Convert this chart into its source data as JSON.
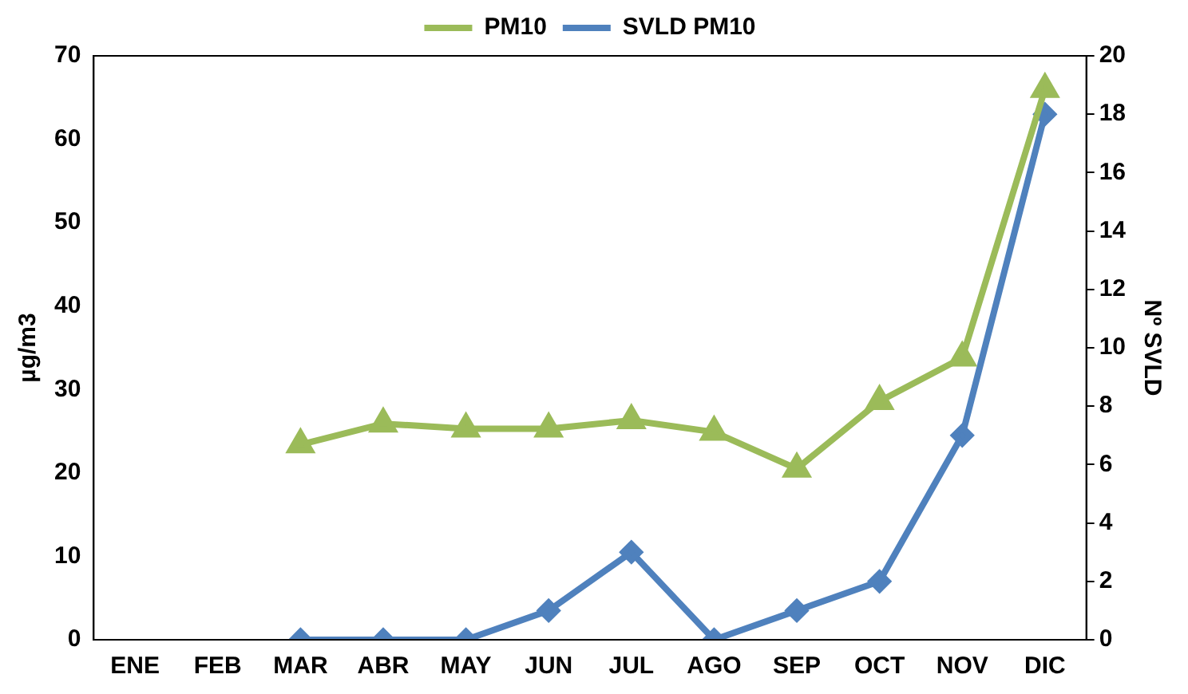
{
  "chart_data": {
    "type": "line",
    "ylabel": "µg/m3",
    "y2label": "Nº SVLD",
    "categories": [
      "ENE",
      "FEB",
      "MAR",
      "ABR",
      "MAY",
      "JUN",
      "JUL",
      "AGO",
      "SEP",
      "OCT",
      "NOV",
      "DIC"
    ],
    "series": [
      {
        "name": "PM10",
        "color": "#9bbb59",
        "marker": "triangle",
        "values": [
          null,
          null,
          23.4,
          25.9,
          25.3,
          25.3,
          26.3,
          24.9,
          20.5,
          28.6,
          33.8,
          66
        ]
      },
      {
        "name": "SVLD PM10",
        "color": "#4f81bd",
        "marker": "diamond",
        "axis": "y2",
        "values": [
          null,
          null,
          0,
          0,
          0,
          1,
          3,
          0,
          1,
          2,
          7,
          18
        ]
      }
    ],
    "ylim": [
      0,
      70
    ],
    "yticks": [
      0,
      10,
      20,
      30,
      40,
      50,
      60,
      70
    ],
    "y2lim": [
      0,
      20
    ],
    "y2ticks": [
      0,
      2,
      4,
      6,
      8,
      10,
      12,
      14,
      16,
      18,
      20
    ],
    "grid": false,
    "legend": "top"
  }
}
